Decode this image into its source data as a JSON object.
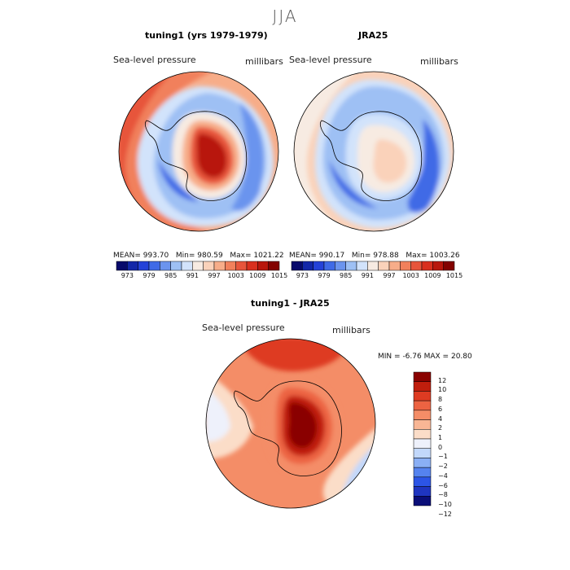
{
  "season_title": "JJA",
  "field_label": "Sea-level pressure",
  "units_label": "millibars",
  "colors": {
    "sequential": [
      "#080a6b",
      "#1327a8",
      "#2442d8",
      "#3f6ae6",
      "#6b94ee",
      "#9ec0f4",
      "#d2e3fb",
      "#f7ebe2",
      "#fad2ba",
      "#f7ad89",
      "#f1805b",
      "#e7553b",
      "#d9301e",
      "#b8170c",
      "#830200"
    ],
    "difference": [
      "#0a0e78",
      "#1f35c0",
      "#2c55e6",
      "#5583ef",
      "#8aaff5",
      "#c2d8fb",
      "#eef1fb",
      "#fbddc8",
      "#f8b695",
      "#f48d67",
      "#ec6342",
      "#de3b22",
      "#c01e0d",
      "#8a0200"
    ]
  },
  "chart_data": [
    {
      "type": "heatmap",
      "title": "tuning1 (yrs 1979-1979)",
      "subtitle": "Sea-level pressure",
      "units": "millibars",
      "stats": {
        "mean_label": "MEAN=",
        "mean": "993.70",
        "min_label": "Min=",
        "min": "980.59",
        "max_label": "Max=",
        "max": "1021.22"
      },
      "colorbar_ticks": [
        "973",
        "979",
        "985",
        "991",
        "997",
        "1003",
        "1009",
        "1015"
      ]
    },
    {
      "type": "heatmap",
      "title": "JRA25",
      "subtitle": "Sea-level pressure",
      "units": "millibars",
      "stats": {
        "mean_label": "MEAN=",
        "mean": "990.17",
        "min_label": "Min=",
        "min": "978.88",
        "max_label": "Max=",
        "max": "1003.26"
      },
      "colorbar_ticks": [
        "973",
        "979",
        "985",
        "991",
        "997",
        "1003",
        "1009",
        "1015"
      ]
    },
    {
      "type": "heatmap",
      "title": "tuning1 - JRA25",
      "subtitle": "Sea-level pressure",
      "units": "millibars",
      "stats": {
        "min_label": "MIN =",
        "min": "-6.76",
        "max_label": "MAX =",
        "max": "20.80"
      },
      "colorbar_ticks": [
        "12",
        "10",
        "8",
        "6",
        "4",
        "2",
        "1",
        "0",
        "−1",
        "−2",
        "−4",
        "−6",
        "−8",
        "−10",
        "−12"
      ]
    }
  ]
}
